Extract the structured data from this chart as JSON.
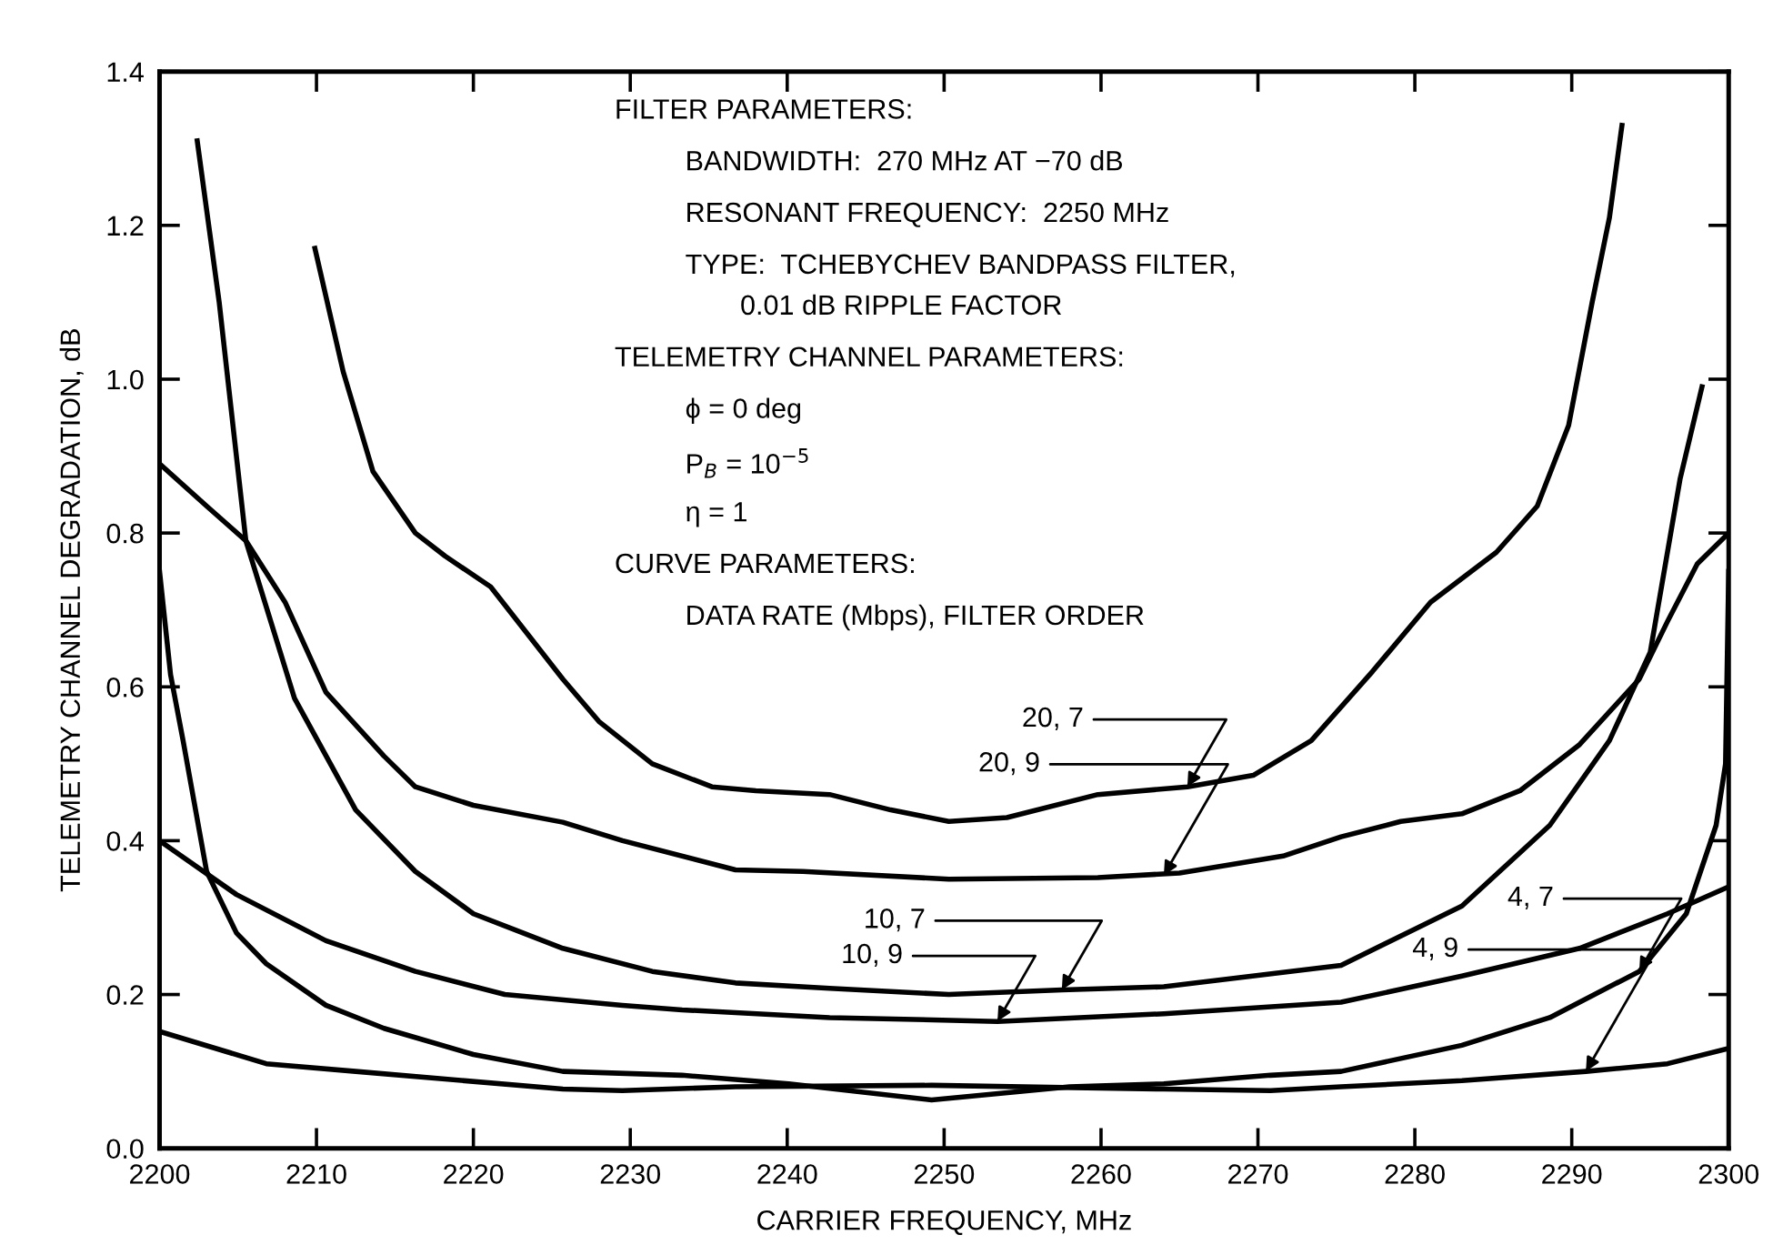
{
  "chart_data": {
    "type": "line",
    "xlabel": "CARRIER FREQUENCY, MHz",
    "ylabel": "TELEMETRY CHANNEL DEGRADATION, dB",
    "xlim": [
      2200,
      2300
    ],
    "xticks": [
      2200,
      2210,
      2220,
      2230,
      2240,
      2250,
      2260,
      2270,
      2280,
      2290,
      2300
    ],
    "ylim": [
      0,
      1.4
    ],
    "yticks": [
      {
        "value": 0,
        "label": "0.0"
      },
      0.2,
      0.4,
      0.6,
      0.8,
      {
        "value": 1,
        "label": "1.0"
      },
      1.2,
      1.4
    ],
    "grid": false,
    "legend": false,
    "marker": "none",
    "line_style": "solid",
    "series": [
      {
        "color": "#000000",
        "x": [
          2209.9,
          2211.7,
          2213.6,
          2216.3,
          2218.2,
          2221.1,
          2225.7,
          2228,
          2231.4,
          2235.2,
          2238,
          2242.7,
          2246.6,
          2250.3,
          2254,
          2259.8,
          2265.5,
          2269.7,
          2273.4,
          2277.3,
          2281,
          2285.2,
          2287.8,
          2289.8,
          2291.3,
          2292.4,
          2293.2
        ],
        "values": [
          1.17,
          1.01,
          0.88,
          0.8,
          0.77,
          0.73,
          0.61,
          0.555,
          0.5,
          0.47,
          0.465,
          0.46,
          0.44,
          0.425,
          0.43,
          0.46,
          0.47,
          0.485,
          0.53,
          0.62,
          0.71,
          0.775,
          0.835,
          0.94,
          1.1,
          1.21,
          1.33
        ]
      },
      {
        "color": "#000000",
        "x": [
          2200,
          2203,
          2205.5,
          2208,
          2210.6,
          2214.3,
          2216.3,
          2220,
          2225.7,
          2229.5,
          2236.7,
          2241,
          2250.3,
          2259.8,
          2265,
          2271.6,
          2275.3,
          2279.1,
          2283,
          2286.7,
          2290.5,
          2294.3,
          2296.1,
          2298,
          2300
        ],
        "values": [
          0.89,
          0.835,
          0.79,
          0.71,
          0.593,
          0.51,
          0.47,
          0.446,
          0.424,
          0.4,
          0.362,
          0.36,
          0.35,
          0.352,
          0.358,
          0.38,
          0.405,
          0.425,
          0.435,
          0.465,
          0.525,
          0.61,
          0.685,
          0.76,
          0.8
        ]
      },
      {
        "color": "#000000",
        "x": [
          2202.4,
          2203.8,
          2205.5,
          2208.6,
          2212.5,
          2216.3,
          2220,
          2225.7,
          2231.4,
          2236.7,
          2242.7,
          2250.3,
          2257.5,
          2264,
          2275.3,
          2283,
          2288.6,
          2292.4,
          2295,
          2296.9,
          2298.3
        ],
        "values": [
          1.31,
          1.1,
          0.79,
          0.585,
          0.44,
          0.36,
          0.305,
          0.26,
          0.23,
          0.215,
          0.208,
          0.2,
          0.206,
          0.21,
          0.238,
          0.315,
          0.42,
          0.53,
          0.645,
          0.87,
          0.99
        ]
      },
      {
        "color": "#000000",
        "x": [
          2200,
          2204.9,
          2210.6,
          2216.3,
          2222,
          2229.5,
          2233.3,
          2242.7,
          2253.4,
          2264,
          2275.3,
          2283,
          2290.5,
          2296.1,
          2300
        ],
        "values": [
          0.4,
          0.33,
          0.27,
          0.23,
          0.2,
          0.186,
          0.18,
          0.17,
          0.165,
          0.175,
          0.19,
          0.224,
          0.26,
          0.305,
          0.34
        ]
      },
      {
        "color": "#000000",
        "x": [
          2200,
          2200.7,
          2201.5,
          2203,
          2204.9,
          2206.8,
          2210.6,
          2214.3,
          2220,
          2225.7,
          2233.3,
          2240.1,
          2249.2,
          2258,
          2264,
          2270.8,
          2275.3,
          2283,
          2288.6,
          2294.3,
          2297.3,
          2299.2,
          2299.8,
          2300
        ],
        "values": [
          0.75,
          0.616,
          0.53,
          0.36,
          0.28,
          0.24,
          0.186,
          0.156,
          0.122,
          0.1,
          0.095,
          0.084,
          0.063,
          0.08,
          0.084,
          0.095,
          0.1,
          0.134,
          0.17,
          0.23,
          0.305,
          0.42,
          0.5,
          0.75
        ]
      },
      {
        "color": "#000000",
        "x": [
          2200,
          2206.8,
          2212.5,
          2218.2,
          2225.7,
          2229.5,
          2236.7,
          2249.2,
          2264,
          2270.8,
          2275.3,
          2283,
          2290.9,
          2296.1,
          2300
        ],
        "values": [
          0.152,
          0.11,
          0.1,
          0.09,
          0.077,
          0.075,
          0.08,
          0.082,
          0.077,
          0.075,
          0.08,
          0.088,
          0.1,
          0.11,
          0.13
        ]
      }
    ],
    "annotations": [
      "FILTER PARAMETERS:",
      "BANDWIDTH:  270 MHz AT −70 dB",
      "RESONANT FREQUENCY:  2250 MHz",
      "TYPE:  TCHEBYCHEV BANDPASS FILTER,",
      "0.01 dB RIPPLE FACTOR",
      "TELEMETRY CHANNEL PARAMETERS:",
      "ϕ = 0 deg",
      "P$_{B}$ = 10$^{−5}$",
      "η = 1",
      "CURVE PARAMETERS:",
      "DATA RATE (Mbps), FILTER ORDER",
      {
        "text": "20, 7",
        "x": 2265.5,
        "y": 0.47
      },
      {
        "text": "20, 9",
        "x": 2264,
        "y": 0.355
      },
      {
        "text": "10, 7",
        "x": 2257.5,
        "y": 0.206
      },
      {
        "text": "10, 9",
        "x": 2253.4,
        "y": 0.165
      },
      {
        "text": "4, 7",
        "x": 2294.3,
        "y": 0.23
      },
      {
        "text": "4, 9",
        "x": 2290.9,
        "y": 0.1
      }
    ]
  }
}
